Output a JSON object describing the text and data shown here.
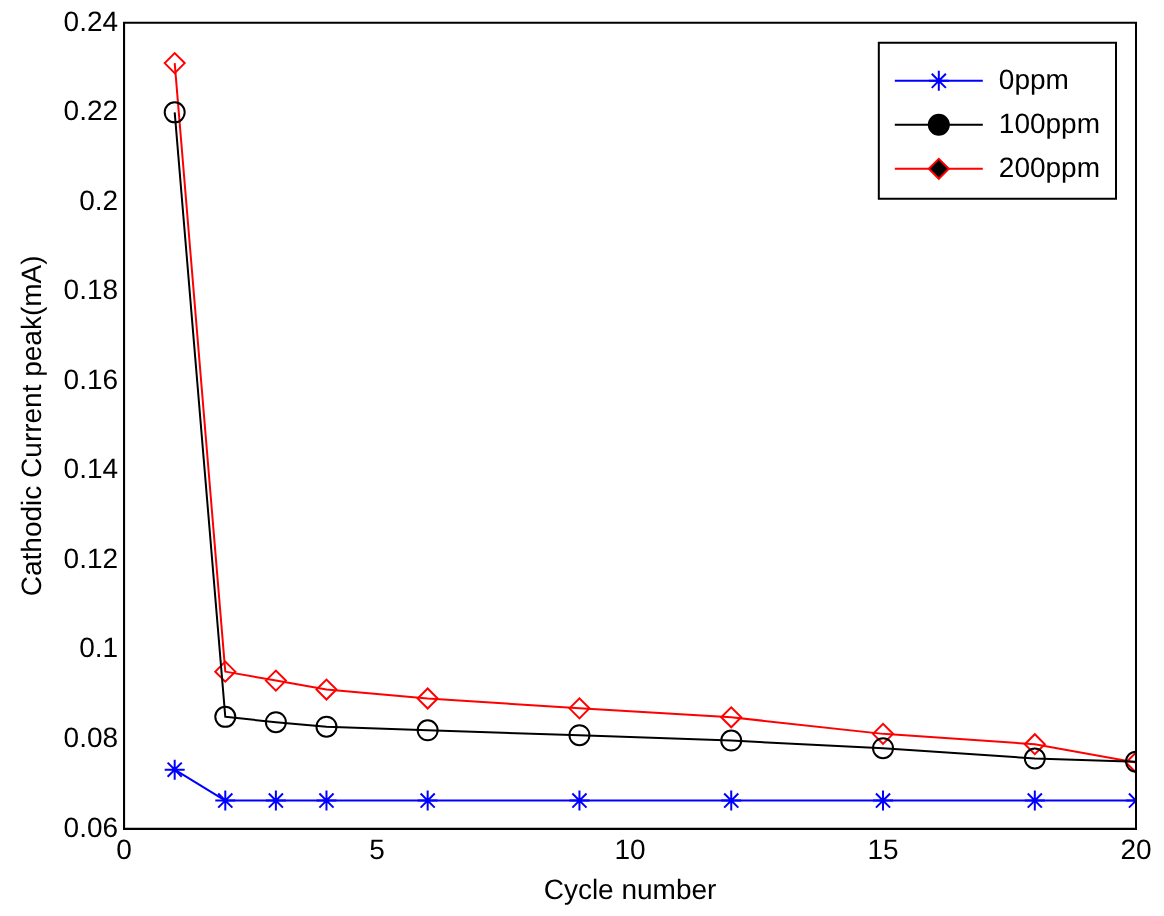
{
  "chart_data": {
    "type": "line",
    "xlabel": "Cycle number",
    "ylabel": "Cathodic Current peak(mA)",
    "x": [
      1,
      2,
      3,
      4,
      6,
      9,
      12,
      15,
      18,
      20
    ],
    "series": [
      {
        "name": "0ppm",
        "color": "#0000ff",
        "marker": "cross",
        "values": [
          0.0732,
          0.0663,
          0.0663,
          0.0663,
          0.0663,
          0.0663,
          0.0663,
          0.0663,
          0.0663,
          0.0663
        ]
      },
      {
        "name": "100ppm",
        "color": "#000000",
        "marker": "circle",
        "values": [
          0.22,
          0.085,
          0.0838,
          0.0828,
          0.082,
          0.0809,
          0.0797,
          0.078,
          0.0757,
          0.075
        ]
      },
      {
        "name": "200ppm",
        "color": "#ff0000",
        "marker": "diamond",
        "values": [
          0.231,
          0.0951,
          0.0931,
          0.0911,
          0.0891,
          0.0869,
          0.0849,
          0.0812,
          0.0789,
          0.0748
        ]
      }
    ],
    "xlim": [
      0,
      20
    ],
    "xticks": [
      0,
      5,
      10,
      15,
      20
    ],
    "ylim": [
      0.06,
      0.24
    ],
    "yticks": [
      0.06,
      0.08,
      0.1,
      0.12,
      0.14,
      0.16,
      0.18,
      0.2,
      0.22,
      0.24
    ],
    "grid": false,
    "legend": "top right"
  }
}
